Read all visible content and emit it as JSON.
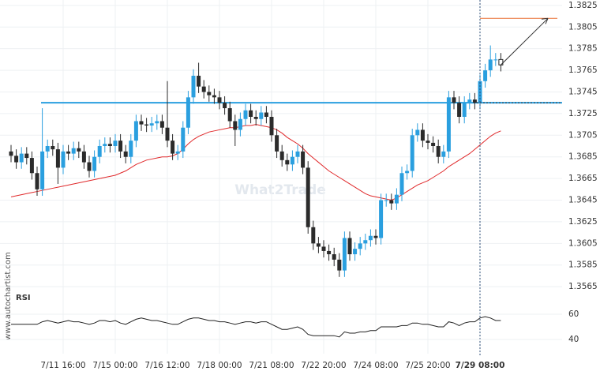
{
  "chart_data": [
    {
      "type": "candlestick",
      "categories": [
        null,
        null,
        null,
        null,
        null,
        null,
        null,
        null,
        null,
        null,
        "7/11 16:00",
        null,
        null,
        null,
        null,
        null,
        null,
        null,
        null,
        null,
        "7/15 00:00",
        null,
        null,
        null,
        null,
        null,
        null,
        null,
        null,
        null,
        "7/16 12:00",
        null,
        null,
        null,
        null,
        null,
        null,
        null,
        null,
        null,
        "7/18 00:00",
        null,
        null,
        null,
        null,
        null,
        null,
        null,
        null,
        null,
        "7/21 08:00",
        null,
        null,
        null,
        null,
        null,
        null,
        null,
        null,
        null,
        "7/22 20:00",
        null,
        null,
        null,
        null,
        null,
        null,
        null,
        null,
        null,
        "7/24 08:00",
        null,
        null,
        null,
        null,
        null,
        null,
        null,
        null,
        null,
        "7/25 20:00",
        null,
        null,
        null,
        null,
        null,
        null,
        null,
        null,
        null,
        "7/29 08:00",
        null,
        null,
        null,
        null
      ],
      "open": [
        1.369,
        1.3686,
        1.368,
        1.3688,
        1.3684,
        1.367,
        1.3655,
        1.369,
        1.3695,
        1.3692,
        1.3675,
        1.369,
        1.3688,
        1.3693,
        1.369,
        1.368,
        1.3672,
        1.3685,
        1.3695,
        1.3697,
        1.3695,
        1.37,
        1.369,
        1.3685,
        1.37,
        1.3718,
        1.3715,
        1.3714,
        1.3716,
        1.3718,
        1.3712,
        1.37,
        1.3688,
        1.369,
        1.3712,
        1.374,
        1.376,
        1.375,
        1.3745,
        1.3742,
        1.374,
        1.3735,
        1.373,
        1.3718,
        1.371,
        1.372,
        1.3728,
        1.3722,
        1.372,
        1.3726,
        1.3722,
        1.3705,
        1.369,
        1.3682,
        1.3678,
        1.3685,
        1.369,
        1.3675,
        1.362,
        1.3605,
        1.3602,
        1.3598,
        1.3595,
        1.359,
        1.358,
        1.361,
        1.3595,
        1.36,
        1.3605,
        1.3608,
        1.3612,
        1.361,
        1.3645,
        1.3645,
        1.3642,
        1.365,
        1.367,
        1.3672,
        1.3705,
        1.371,
        1.37,
        1.3698,
        1.3695,
        1.3685,
        1.369,
        1.374,
        1.3735,
        1.3722,
        1.3735,
        1.3738,
        1.3735,
        1.3755,
        1.3765,
        1.3775,
        1.3775
      ],
      "high": [
        1.3696,
        1.3692,
        1.3694,
        1.3694,
        1.369,
        1.3676,
        1.373,
        1.3701,
        1.3701,
        1.3698,
        1.3696,
        1.3696,
        1.3699,
        1.3699,
        1.3696,
        1.3686,
        1.3691,
        1.3701,
        1.3703,
        1.3703,
        1.3706,
        1.3706,
        1.3696,
        1.3706,
        1.3724,
        1.3724,
        1.3721,
        1.3722,
        1.3724,
        1.3724,
        1.3755,
        1.3706,
        1.3696,
        1.3718,
        1.3746,
        1.3766,
        1.3772,
        1.3756,
        1.3751,
        1.3748,
        1.3746,
        1.3741,
        1.3736,
        1.3724,
        1.3726,
        1.3734,
        1.3734,
        1.3728,
        1.3732,
        1.3732,
        1.3728,
        1.3711,
        1.3696,
        1.3688,
        1.3691,
        1.3696,
        1.3696,
        1.3681,
        1.3626,
        1.3611,
        1.3608,
        1.3604,
        1.3601,
        1.3596,
        1.3616,
        1.3616,
        1.3606,
        1.3611,
        1.3614,
        1.3618,
        1.3618,
        1.3651,
        1.3651,
        1.3651,
        1.3656,
        1.3676,
        1.3678,
        1.3711,
        1.3716,
        1.3716,
        1.3706,
        1.3704,
        1.3701,
        1.3696,
        1.3746,
        1.3746,
        1.3741,
        1.3741,
        1.3744,
        1.3744,
        1.3761,
        1.3771,
        1.3788,
        1.3781,
        1.3781
      ],
      "low": [
        1.368,
        1.3674,
        1.3674,
        1.3678,
        1.3664,
        1.3649,
        1.3649,
        1.3684,
        1.3686,
        1.366,
        1.3669,
        1.3682,
        1.3682,
        1.3684,
        1.3674,
        1.3666,
        1.3666,
        1.3679,
        1.3689,
        1.3689,
        1.3689,
        1.3684,
        1.3679,
        1.3679,
        1.3694,
        1.3709,
        1.3708,
        1.3708,
        1.371,
        1.3706,
        1.3694,
        1.3682,
        1.3682,
        1.3684,
        1.3706,
        1.3734,
        1.3744,
        1.3739,
        1.3736,
        1.3734,
        1.3729,
        1.3724,
        1.3712,
        1.3695,
        1.3704,
        1.3714,
        1.3716,
        1.3714,
        1.3714,
        1.3716,
        1.3699,
        1.3684,
        1.3676,
        1.3672,
        1.3672,
        1.3679,
        1.3669,
        1.3614,
        1.3599,
        1.3596,
        1.3592,
        1.3589,
        1.3584,
        1.3574,
        1.3574,
        1.3589,
        1.3589,
        1.3594,
        1.3599,
        1.3602,
        1.3604,
        1.3604,
        1.3639,
        1.3636,
        1.3636,
        1.3644,
        1.3664,
        1.3666,
        1.3699,
        1.3694,
        1.3692,
        1.3689,
        1.3679,
        1.3679,
        1.3684,
        1.3729,
        1.3716,
        1.3716,
        1.3729,
        1.3729,
        1.3729,
        1.3749,
        1.3759,
        1.3769,
        1.3764
      ],
      "close": [
        1.3686,
        1.368,
        1.3688,
        1.3684,
        1.367,
        1.3655,
        1.369,
        1.3695,
        1.3692,
        1.3675,
        1.369,
        1.3688,
        1.3693,
        1.369,
        1.368,
        1.3672,
        1.3685,
        1.3695,
        1.3697,
        1.3695,
        1.37,
        1.369,
        1.3685,
        1.37,
        1.3718,
        1.3715,
        1.3714,
        1.3716,
        1.3718,
        1.3712,
        1.37,
        1.3688,
        1.369,
        1.3712,
        1.374,
        1.376,
        1.375,
        1.3745,
        1.3742,
        1.374,
        1.3735,
        1.373,
        1.3718,
        1.371,
        1.372,
        1.3728,
        1.3722,
        1.372,
        1.3726,
        1.3722,
        1.3705,
        1.369,
        1.3682,
        1.3678,
        1.3685,
        1.369,
        1.3675,
        1.362,
        1.3605,
        1.3602,
        1.3598,
        1.3595,
        1.359,
        1.358,
        1.361,
        1.3595,
        1.36,
        1.3605,
        1.3608,
        1.3612,
        1.361,
        1.3645,
        1.3645,
        1.3642,
        1.365,
        1.367,
        1.3672,
        1.3705,
        1.371,
        1.37,
        1.3698,
        1.3695,
        1.3685,
        1.369,
        1.374,
        1.3735,
        1.3722,
        1.3735,
        1.3738,
        1.3735,
        1.3755,
        1.3765,
        1.3775,
        1.3775,
        1.377
      ],
      "moving_average": [
        1.3648,
        1.3649,
        1.365,
        1.3651,
        1.3652,
        1.3653,
        1.3654,
        1.3655,
        1.3656,
        1.3657,
        1.3658,
        1.3659,
        1.366,
        1.3661,
        1.3662,
        1.3663,
        1.3664,
        1.3665,
        1.3666,
        1.3667,
        1.3668,
        1.367,
        1.3672,
        1.3675,
        1.3678,
        1.368,
        1.3682,
        1.3683,
        1.3684,
        1.3685,
        1.3685,
        1.3686,
        1.3688,
        1.3692,
        1.3697,
        1.3701,
        1.3704,
        1.3706,
        1.3708,
        1.3709,
        1.371,
        1.3711,
        1.3712,
        1.3712,
        1.3713,
        1.3714,
        1.3714,
        1.3715,
        1.3714,
        1.3713,
        1.3712,
        1.371,
        1.3707,
        1.3703,
        1.37,
        1.3697,
        1.3693,
        1.3688,
        1.3684,
        1.368,
        1.3676,
        1.3672,
        1.3669,
        1.3666,
        1.3663,
        1.366,
        1.3657,
        1.3654,
        1.3651,
        1.3649,
        1.3648,
        1.3647,
        1.3646,
        1.3645,
        1.3647,
        1.365,
        1.3653,
        1.3656,
        1.3659,
        1.3661,
        1.3663,
        1.3666,
        1.3669,
        1.3672,
        1.3676,
        1.3679,
        1.3682,
        1.3685,
        1.3688,
        1.3692,
        1.3696,
        1.37,
        1.3704,
        1.3707,
        1.3709
      ],
      "up_color": "#2a9fdf",
      "down_color": "#2b2b2b",
      "ma_color": "#e0292b",
      "support_level": 1.3735,
      "support_color": "#2a9fdf",
      "target_level": 1.3813,
      "target_color": "#e86a2c",
      "ylim": [
        1.356,
        1.383
      ],
      "yticks": [
        1.3825,
        1.3805,
        1.3785,
        1.3765,
        1.3745,
        1.3725,
        1.3705,
        1.3685,
        1.3665,
        1.3645,
        1.3625,
        1.3605,
        1.3585,
        1.3565
      ],
      "grid": true,
      "watermark": "What2Trade",
      "source": "www.autochartist.com"
    },
    {
      "type": "line",
      "title": "RSI",
      "values": [
        52,
        52,
        52,
        52,
        52,
        52,
        54,
        55,
        54,
        53,
        54,
        55,
        54,
        54,
        53,
        52,
        53,
        55,
        55,
        54,
        55,
        53,
        52,
        54,
        56,
        57,
        56,
        55,
        55,
        54,
        53,
        52,
        52,
        54,
        56,
        57,
        57,
        56,
        55,
        55,
        54,
        54,
        53,
        52,
        53,
        54,
        54,
        53,
        54,
        54,
        52,
        50,
        48,
        48,
        49,
        50,
        48,
        44,
        43,
        43,
        43,
        43,
        43,
        42,
        46,
        45,
        45,
        46,
        46,
        47,
        47,
        50,
        50,
        50,
        50,
        51,
        51,
        53,
        53,
        52,
        52,
        51,
        50,
        50,
        54,
        53,
        51,
        53,
        54,
        54,
        57,
        58,
        57,
        55,
        55
      ],
      "color": "#222222",
      "ylim": [
        30,
        75
      ],
      "yticks": [
        40,
        60
      ]
    }
  ]
}
